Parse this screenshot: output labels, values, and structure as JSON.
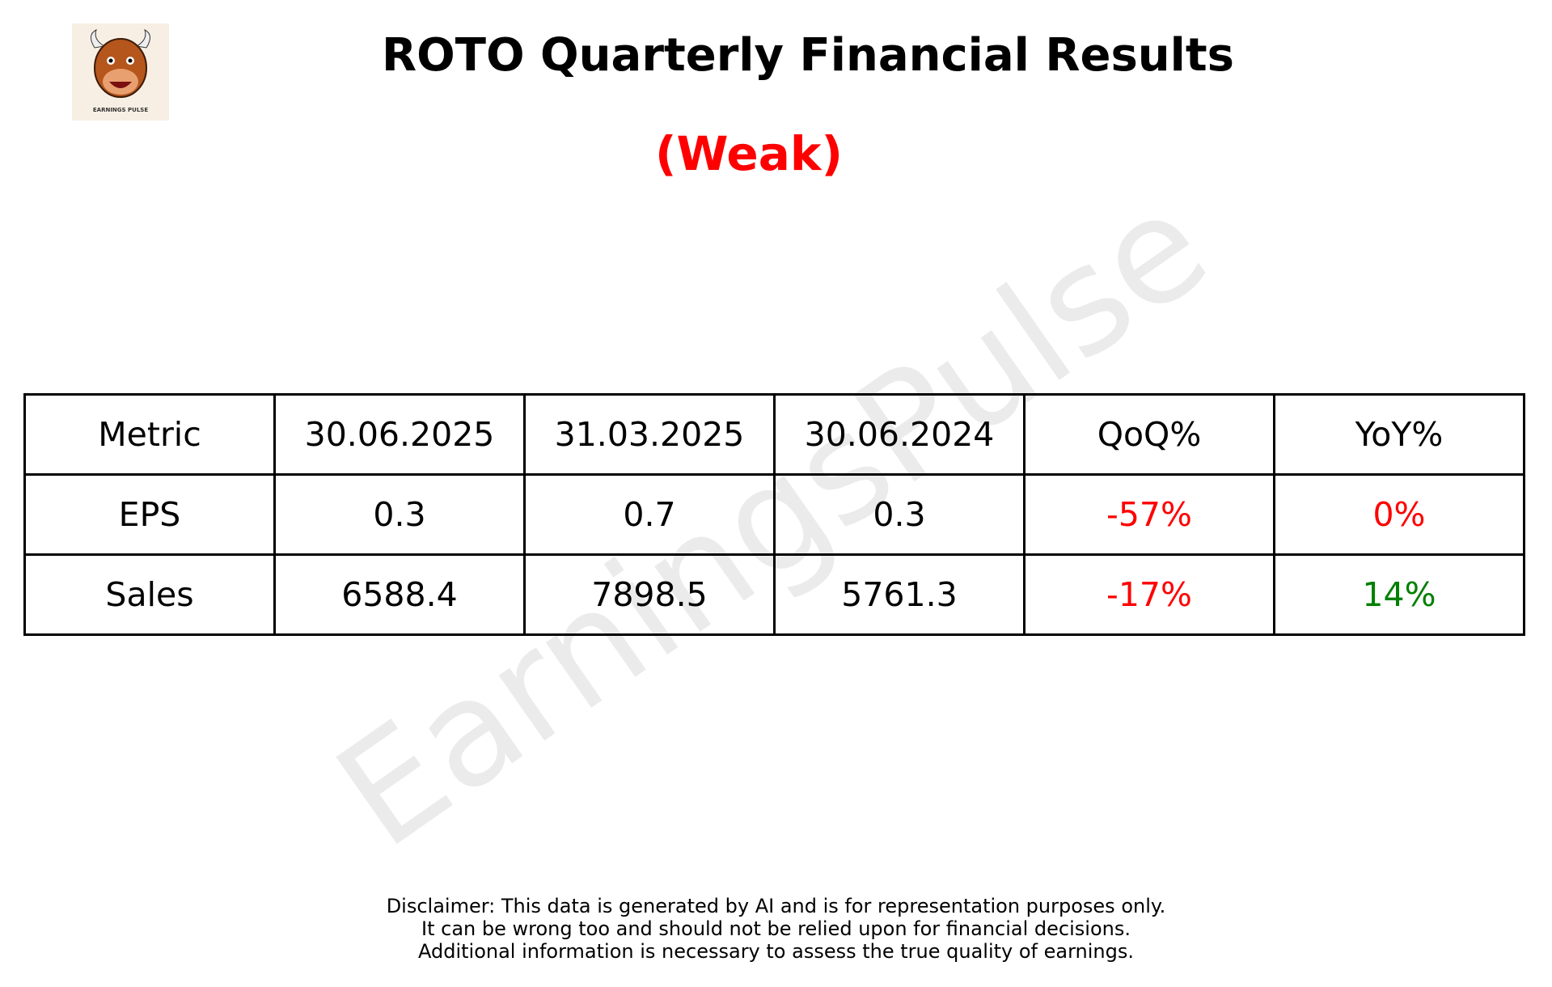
{
  "header": {
    "title": "ROTO Quarterly Financial Results",
    "subtitle": "(Weak)",
    "subtitle_color": "#ff0000"
  },
  "logo": {
    "caption": "EARNINGS PULSE"
  },
  "watermark": "EarningsPulse",
  "table": {
    "columns": [
      "Metric",
      "30.06.2025",
      "31.03.2025",
      "30.06.2024",
      "QoQ%",
      "YoY%"
    ],
    "rows": [
      [
        "EPS",
        "0.3",
        "0.7",
        "0.3",
        "-57%",
        "0%"
      ],
      [
        "Sales",
        "6588.4",
        "7898.5",
        "5761.3",
        "-17%",
        "14%"
      ]
    ],
    "cell_colors": [
      [
        "#000000",
        "#000000",
        "#000000",
        "#000000",
        "#ff0000",
        "#ff0000"
      ],
      [
        "#000000",
        "#000000",
        "#000000",
        "#000000",
        "#ff0000",
        "#008000"
      ]
    ]
  },
  "disclaimer": [
    "Disclaimer: This data is generated by AI and is for representation purposes only.",
    "It can be wrong too and should not be relied upon for financial decisions.",
    "Additional information is necessary to assess the true quality of earnings."
  ]
}
